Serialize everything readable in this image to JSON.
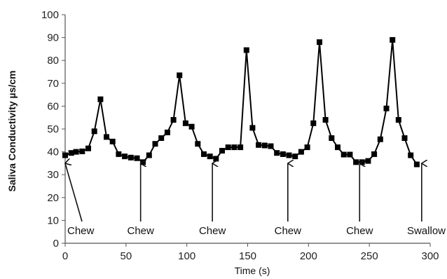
{
  "chart_data": {
    "type": "line",
    "title": "",
    "xlabel": "Time (s)",
    "ylabel": "Saliva Conductivity µs/cm",
    "xlim": [
      0,
      300
    ],
    "ylim": [
      0,
      100
    ],
    "x_ticks": [
      0,
      50,
      100,
      150,
      200,
      250,
      300
    ],
    "y_ticks": [
      0,
      10,
      20,
      30,
      40,
      50,
      60,
      70,
      80,
      90,
      100
    ],
    "grid": false,
    "legend": "none",
    "series": [
      {
        "color": "#000000",
        "marker": "square",
        "x": [
          0,
          5,
          9,
          14,
          19,
          24,
          29,
          34,
          39,
          44,
          49,
          54,
          59,
          64,
          69,
          74,
          79,
          84,
          89,
          94,
          99,
          104,
          109,
          114,
          119,
          124,
          129,
          134,
          139,
          144,
          149,
          154,
          159,
          164,
          169,
          174,
          179,
          184,
          189,
          194,
          199,
          204,
          209,
          214,
          219,
          224,
          229,
          234,
          239,
          244,
          249,
          254,
          259,
          264,
          269,
          274,
          279,
          284,
          289
        ],
        "y": [
          38.5,
          39.5,
          40,
          40.2,
          41.5,
          49,
          63,
          46.5,
          44.5,
          39,
          38,
          37.5,
          37.2,
          35.5,
          38.5,
          43.5,
          46,
          48.5,
          54,
          73.5,
          52.5,
          51,
          43.5,
          39,
          38,
          37,
          40.5,
          42,
          42,
          42,
          84.5,
          50.5,
          43,
          42.8,
          42.5,
          39.5,
          39,
          38.5,
          38,
          40,
          42,
          52.5,
          88,
          54,
          46,
          42,
          38.8,
          38.8,
          35.5,
          35.5,
          36,
          39,
          45.5,
          59,
          89,
          54,
          46,
          38.5,
          34.5
        ]
      }
    ],
    "annotations": [
      {
        "text": "Chew",
        "x": 0
      },
      {
        "text": "Chew",
        "x": 62
      },
      {
        "text": "Chew",
        "x": 121
      },
      {
        "text": "Chew",
        "x": 183
      },
      {
        "text": "Chew",
        "x": 242
      },
      {
        "text": "Swallow",
        "x": 293
      }
    ]
  }
}
